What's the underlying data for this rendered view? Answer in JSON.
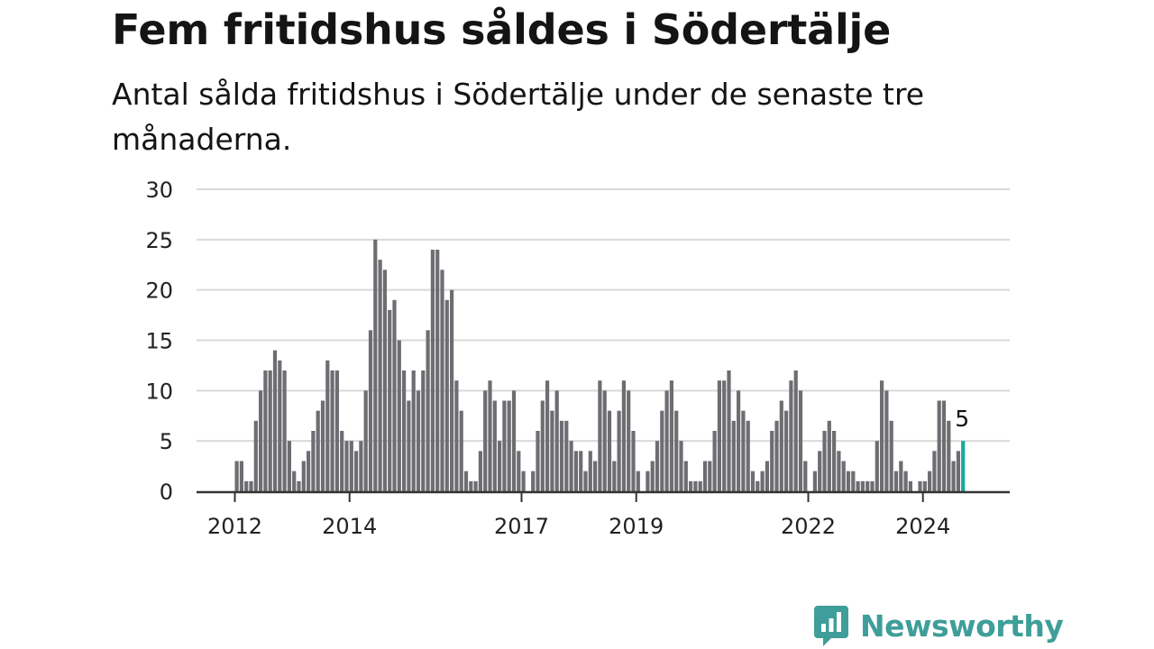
{
  "title": "Fem fritidshus såldes i Södertälje",
  "subtitle": "Antal sålda fritidshus i Södertälje under de senaste tre månaderna.",
  "brand": {
    "name": "Newsworthy",
    "icon": "newsworthy-logo-icon",
    "color": "#3f9e99"
  },
  "chart_data": {
    "type": "bar",
    "title": "Fem fritidshus såldes i Södertälje",
    "subtitle": "Antal sålda fritidshus i Södertälje under de senaste tre månaderna.",
    "xlabel": "",
    "ylabel": "",
    "ylim": [
      0,
      30
    ],
    "yticks": [
      "0",
      "5",
      "10",
      "15",
      "20",
      "25",
      "30"
    ],
    "xticks": [
      {
        "label": "2012",
        "year": 2012
      },
      {
        "label": "2014",
        "year": 2014
      },
      {
        "label": "2017",
        "year": 2017
      },
      {
        "label": "2019",
        "year": 2019
      },
      {
        "label": "2022",
        "year": 2022
      },
      {
        "label": "2024",
        "year": 2024
      }
    ],
    "grid": true,
    "start": "2012-01",
    "bar_color": "#6d6d72",
    "highlight_color": "#1aa89e",
    "highlight_label": "5",
    "values": [
      3,
      3,
      1,
      1,
      7,
      10,
      12,
      12,
      14,
      13,
      12,
      5,
      2,
      1,
      3,
      4,
      6,
      8,
      9,
      13,
      12,
      12,
      6,
      5,
      5,
      4,
      5,
      10,
      16,
      25,
      23,
      22,
      18,
      19,
      15,
      12,
      9,
      12,
      10,
      12,
      16,
      24,
      24,
      22,
      19,
      20,
      11,
      8,
      2,
      1,
      1,
      4,
      10,
      11,
      9,
      5,
      9,
      9,
      10,
      4,
      2,
      0,
      2,
      6,
      9,
      11,
      8,
      10,
      7,
      7,
      5,
      4,
      4,
      2,
      4,
      3,
      11,
      10,
      8,
      3,
      8,
      11,
      10,
      6,
      2,
      0,
      2,
      3,
      5,
      8,
      10,
      11,
      8,
      5,
      3,
      1,
      1,
      1,
      3,
      3,
      6,
      11,
      11,
      12,
      7,
      10,
      8,
      7,
      2,
      1,
      2,
      3,
      6,
      7,
      9,
      8,
      11,
      12,
      10,
      3,
      0,
      2,
      4,
      6,
      7,
      6,
      4,
      3,
      2,
      2,
      1,
      1,
      1,
      1,
      5,
      11,
      10,
      7,
      2,
      3,
      2,
      1,
      0,
      1,
      1,
      2,
      4,
      9,
      9,
      7,
      3,
      4,
      5
    ]
  }
}
